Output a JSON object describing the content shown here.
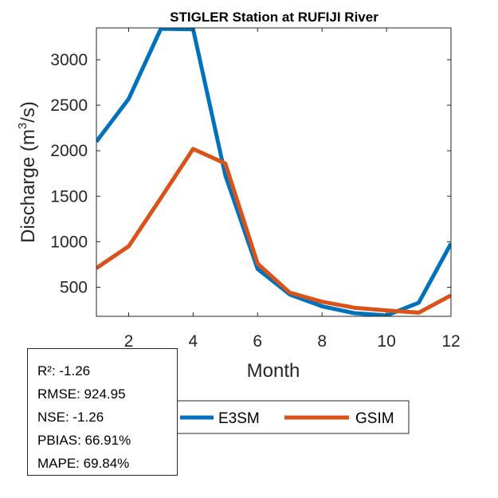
{
  "chart_data": {
    "type": "line",
    "title": "STIGLER  Station at  RUFIJI  River",
    "xlabel": "Month",
    "ylabel_main": "Discharge (m",
    "ylabel_sup": "3",
    "ylabel_end": "/s)",
    "xlim": [
      1,
      12
    ],
    "ylim": [
      180,
      3350
    ],
    "xticks": [
      2,
      4,
      6,
      8,
      10,
      12
    ],
    "yticks": [
      500,
      1000,
      1500,
      2000,
      2500,
      3000
    ],
    "x": [
      1,
      2,
      3,
      4,
      5,
      6,
      7,
      8,
      9,
      10,
      11,
      12
    ],
    "series": [
      {
        "name": "E3SM",
        "color": "#0072BD",
        "values": [
          2100,
          2570,
          3340,
          3335,
          1730,
          700,
          420,
          290,
          215,
          190,
          330,
          980
        ]
      },
      {
        "name": "GSIM",
        "color": "#D95319",
        "values": [
          710,
          950,
          1480,
          2020,
          1860,
          760,
          440,
          340,
          275,
          245,
          220,
          410
        ]
      }
    ],
    "legend_position": "bottom-center, outside plot",
    "grid": false
  },
  "stats": {
    "r2": "R²: -1.26",
    "rmse": "RMSE: 924.95",
    "nse": "NSE: -1.26",
    "pbias": "PBIAS: 66.91%",
    "mape": "MAPE: 69.84%"
  }
}
